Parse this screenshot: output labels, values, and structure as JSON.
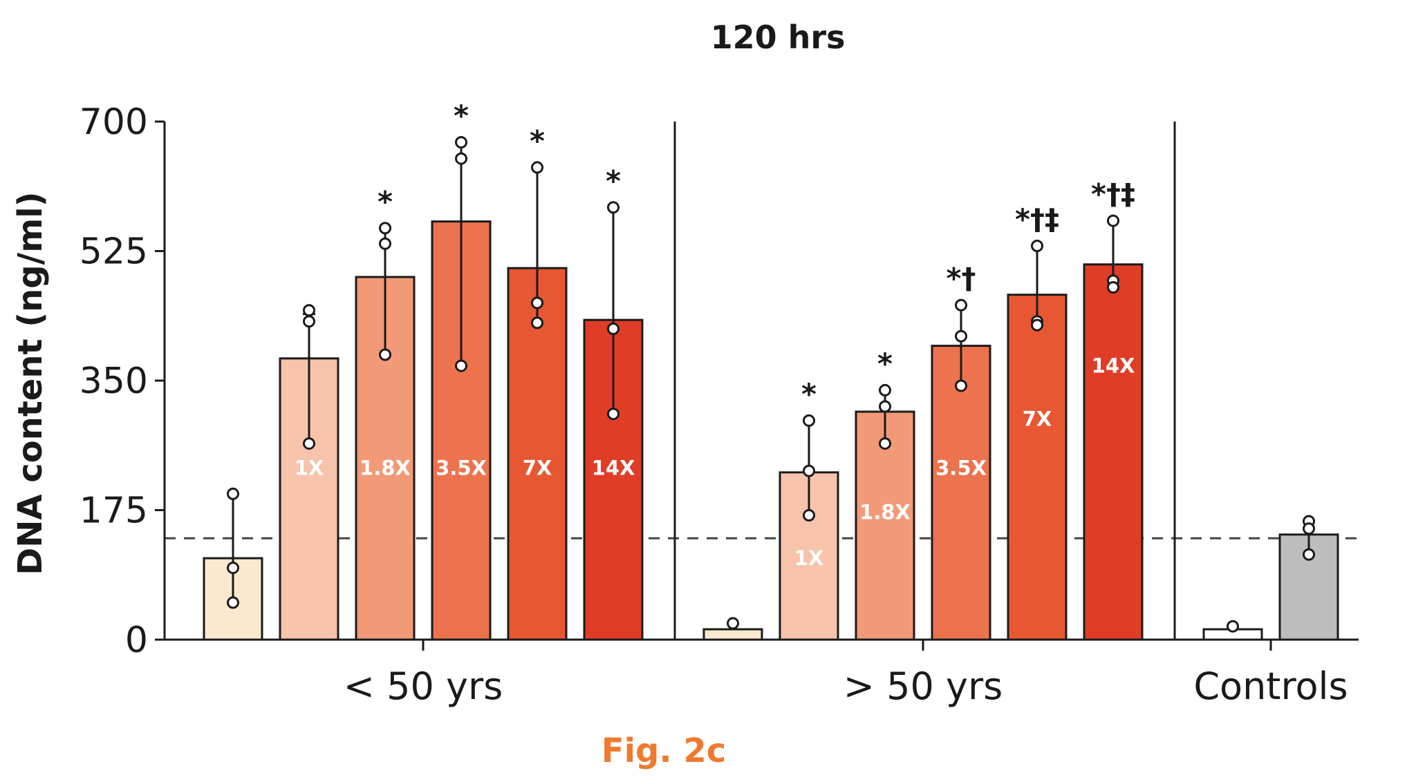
{
  "chart_data": {
    "type": "bar",
    "title": "120 hrs",
    "ylabel": "DNA content (ng/ml)",
    "xlabel": "",
    "ylim": [
      0,
      700
    ],
    "yticks": [
      "0",
      "175",
      "350",
      "525",
      "700"
    ],
    "reference_line": 137,
    "groups": [
      {
        "name": "< 50 yrs",
        "bars": [
          {
            "label": "",
            "value": 110,
            "err_hi": 197,
            "err_lo": 50,
            "points": [
              197,
              97,
              50
            ],
            "sig": "",
            "color": "#fbe9cf",
            "label_value": 0
          },
          {
            "label": "1X",
            "value": 380,
            "err_hi": 440,
            "err_lo": 265,
            "points": [
              445,
              430,
              265
            ],
            "sig": "",
            "color": "#f8c3ab",
            "label_value": 232
          },
          {
            "label": "1.8X",
            "value": 490,
            "err_hi": 556,
            "err_lo": 385,
            "points": [
              556,
              535,
              385
            ],
            "sig": "*",
            "color": "#f29a78",
            "label_value": 232
          },
          {
            "label": "3.5X",
            "value": 565,
            "err_hi": 672,
            "err_lo": 370,
            "points": [
              672,
              650,
              370
            ],
            "sig": "*",
            "color": "#ec734e",
            "label_value": 232
          },
          {
            "label": "7X",
            "value": 502,
            "err_hi": 638,
            "err_lo": 428,
            "points": [
              638,
              455,
              428
            ],
            "sig": "*",
            "color": "#e75732",
            "label_value": 232
          },
          {
            "label": "14X",
            "value": 432,
            "err_hi": 584,
            "err_lo": 305,
            "points": [
              584,
              420,
              305
            ],
            "sig": "*",
            "color": "#e03d26",
            "label_value": 232
          }
        ]
      },
      {
        "name": "> 50 yrs",
        "bars": [
          {
            "label": "",
            "value": 14,
            "err_hi": 22,
            "err_lo": 22,
            "points": [
              22
            ],
            "sig": "",
            "color": "#fbe9cf",
            "label_value": 0
          },
          {
            "label": "1X",
            "value": 226,
            "err_hi": 296,
            "err_lo": 168,
            "points": [
              296,
              228,
              168
            ],
            "sig": "*",
            "color": "#f8c3ab",
            "label_value": 110
          },
          {
            "label": "1.8X",
            "value": 308,
            "err_hi": 337,
            "err_lo": 265,
            "points": [
              337,
              315,
              265
            ],
            "sig": "*",
            "color": "#f29a78",
            "label_value": 172
          },
          {
            "label": "3.5X",
            "value": 397,
            "err_hi": 452,
            "err_lo": 343,
            "points": [
              452,
              410,
              343
            ],
            "sig": "*†",
            "color": "#ec734e",
            "label_value": 232
          },
          {
            "label": "7X",
            "value": 466,
            "err_hi": 532,
            "err_lo": 425,
            "points": [
              532,
              430,
              425
            ],
            "sig": "*†‡",
            "color": "#e75732",
            "label_value": 298
          },
          {
            "label": "14X",
            "value": 507,
            "err_hi": 566,
            "err_lo": 476,
            "points": [
              566,
              485,
              476
            ],
            "sig": "*†‡",
            "color": "#e03d26",
            "label_value": 370
          }
        ]
      },
      {
        "name": "Controls",
        "bars": [
          {
            "label": "",
            "value": 14,
            "err_hi": 18,
            "err_lo": 18,
            "points": [
              18
            ],
            "sig": "",
            "color": "#ffffff",
            "label_value": 0
          },
          {
            "label": "",
            "value": 142,
            "err_hi": 160,
            "err_lo": 115,
            "points": [
              160,
              150,
              115
            ],
            "sig": "",
            "color": "#bdbdbd",
            "label_value": 0
          }
        ]
      }
    ]
  },
  "caption": "Fig. 2c",
  "colors": {
    "caption": "#ef7a2e",
    "axis": "#1a1a1a",
    "reference_line": "#444444"
  }
}
